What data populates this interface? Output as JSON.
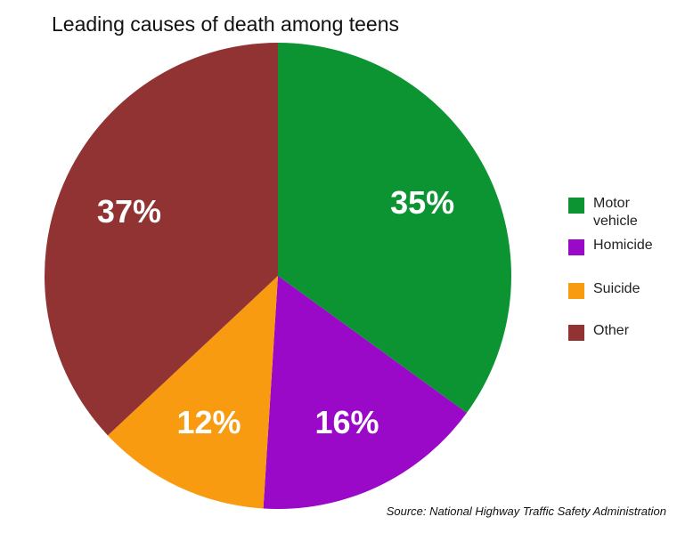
{
  "chart_data": {
    "type": "pie",
    "title": "Leading causes of death among teens",
    "slices": [
      {
        "label": "Motor vehicle",
        "value": 35,
        "value_label": "35%",
        "color": "#0c9433"
      },
      {
        "label": "Homicide",
        "value": 16,
        "value_label": "16%",
        "color": "#9a08c8"
      },
      {
        "label": "Suicide",
        "value": 12,
        "value_label": "12%",
        "color": "#f99b10"
      },
      {
        "label": "Other",
        "value": 37,
        "value_label": "37%",
        "color": "#913333"
      }
    ],
    "start_angle_deg": 0,
    "direction": "clockwise",
    "legend_position": "right",
    "source": "Source: National Highway Traffic Safety Administration"
  }
}
